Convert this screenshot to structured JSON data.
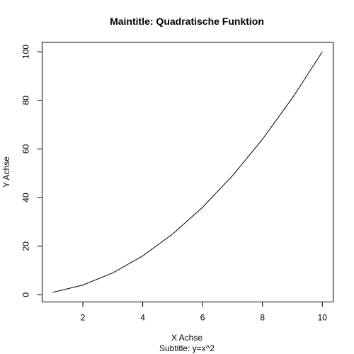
{
  "chart_data": {
    "type": "line",
    "title": "Maintitle: Quadratische Funktion",
    "subtitle": "Subtitle: y=x^2",
    "x_label": "X Achse",
    "y_label": "Y Achse",
    "x": [
      1,
      2,
      3,
      4,
      5,
      6,
      7,
      8,
      9,
      10
    ],
    "series": [
      {
        "values": [
          1,
          4,
          9,
          16,
          25,
          36,
          49,
          64,
          81,
          100
        ],
        "color": "#000000"
      }
    ],
    "xlim": [
      0.64,
      10.36
    ],
    "ylim": [
      -2.96,
      103.96
    ],
    "xticks": [
      2,
      4,
      6,
      8,
      10
    ],
    "yticks": [
      0,
      20,
      40,
      60,
      80,
      100
    ]
  }
}
